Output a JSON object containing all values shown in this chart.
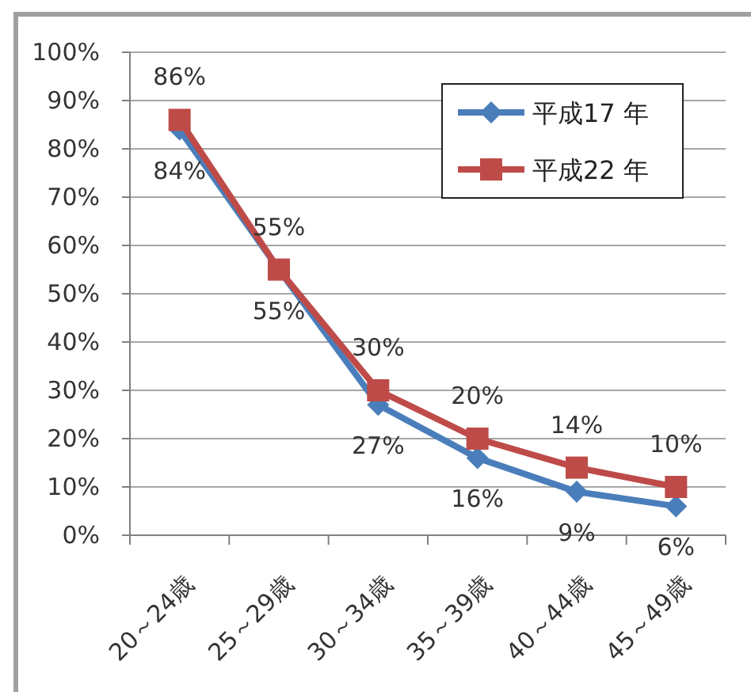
{
  "chart_data": {
    "type": "line",
    "categories": [
      "20～24歳",
      "25～29歳",
      "30～34歳",
      "35～39歳",
      "40～44歳",
      "45～49歳"
    ],
    "series": [
      {
        "name": "平成17 年",
        "color": "#4a7ebb",
        "marker": "diamond",
        "values": [
          84,
          55,
          27,
          16,
          9,
          6
        ],
        "value_labels": [
          "84%",
          "55%",
          "27%",
          "16%",
          "9%",
          "6%"
        ]
      },
      {
        "name": "平成22 年",
        "color": "#be4b48",
        "marker": "square",
        "values": [
          86,
          55,
          30,
          20,
          14,
          10
        ],
        "value_labels": [
          "86%",
          "55%",
          "30%",
          "20%",
          "14%",
          "10%"
        ]
      }
    ],
    "ylim": [
      0,
      100
    ],
    "yticks": [
      {
        "value": 0,
        "label": "0%"
      },
      {
        "value": 10,
        "label": "10%"
      },
      {
        "value": 20,
        "label": "20%"
      },
      {
        "value": 30,
        "label": "30%"
      },
      {
        "value": 40,
        "label": "40%"
      },
      {
        "value": 50,
        "label": "50%"
      },
      {
        "value": 60,
        "label": "60%"
      },
      {
        "value": 70,
        "label": "70%"
      },
      {
        "value": 80,
        "label": "80%"
      },
      {
        "value": 90,
        "label": "90%"
      },
      {
        "value": 100,
        "label": "100%"
      }
    ],
    "grid": "y",
    "legend": "top right",
    "line_style": "solid"
  }
}
